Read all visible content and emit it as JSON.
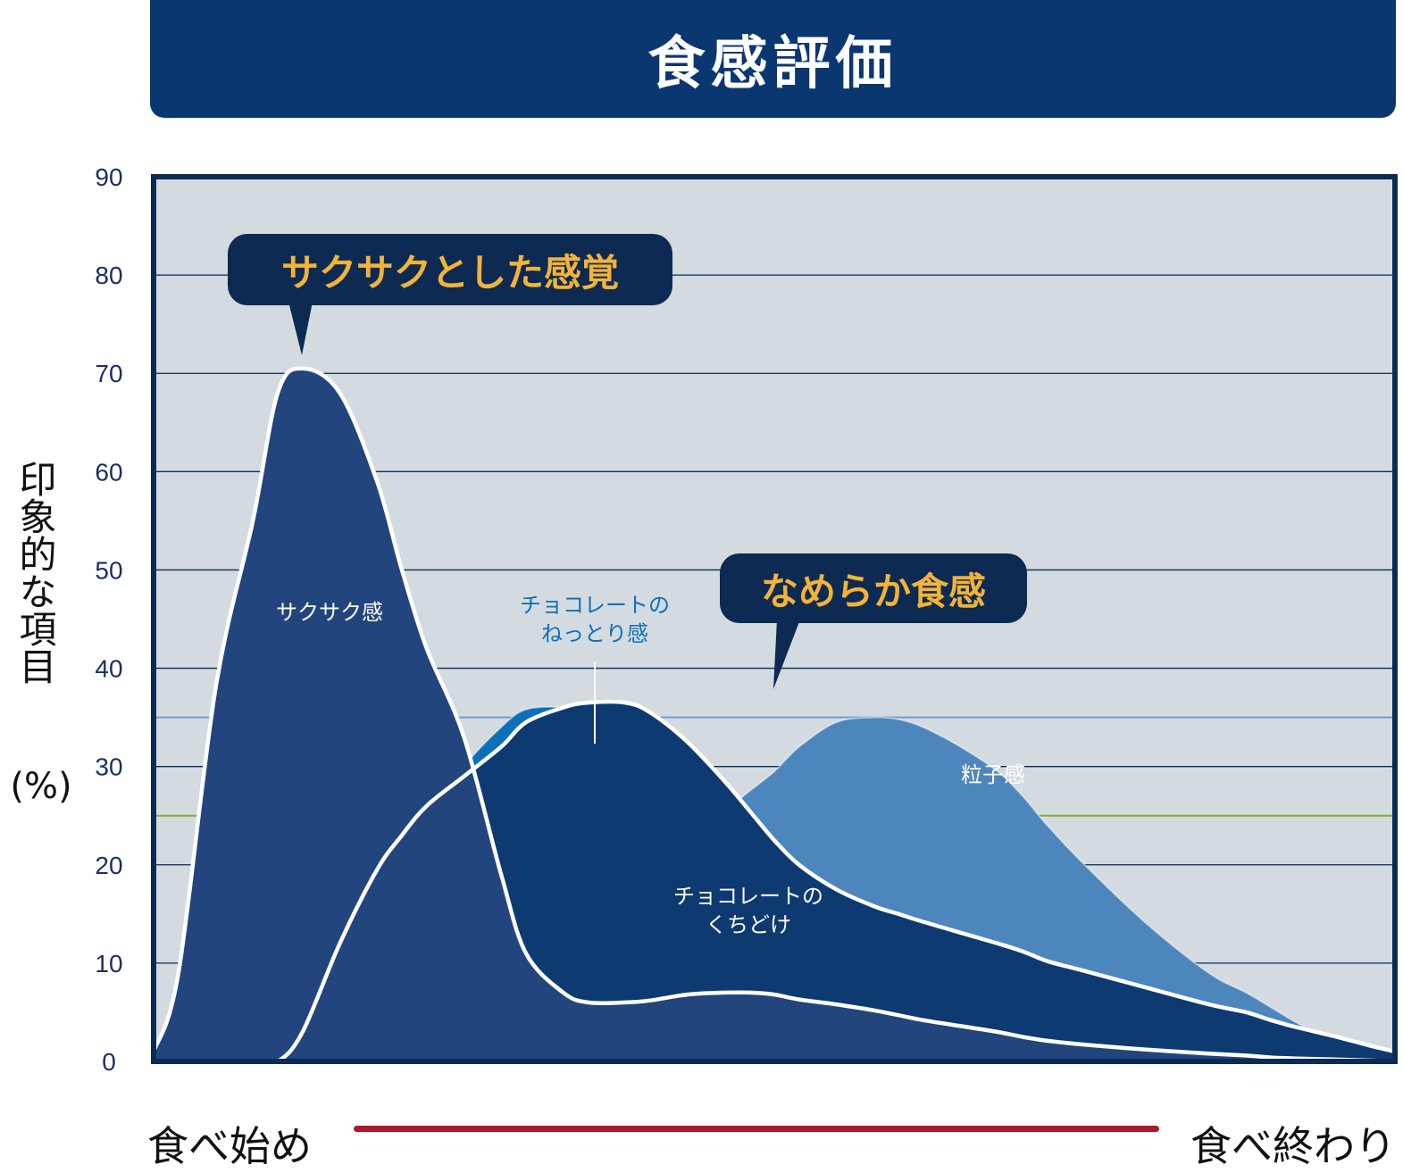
{
  "title": "食感評価",
  "y_axis_label": "印象的な項目",
  "y_axis_unit": "(%)",
  "x_axis_start": "食べ始め",
  "x_axis_end": "食べ終わり",
  "callouts": {
    "crispy": "サクサクとした感覚",
    "smooth": "なめらか食感"
  },
  "colors": {
    "title_bg": "#0b3770",
    "plot_bg": "#d3dbe1",
    "frame": "#0d2a52",
    "callout_text": "#f2b338",
    "arrow": "#b0162b",
    "ref_blue": "#6f9ccd",
    "ref_green": "#7fae3c"
  },
  "chart_data": {
    "type": "area",
    "ylim": [
      0,
      90
    ],
    "yticks": [
      "0",
      "10",
      "20",
      "30",
      "40",
      "50",
      "60",
      "70",
      "80",
      "90"
    ],
    "x": [
      0,
      0.02,
      0.05,
      0.08,
      0.1,
      0.12,
      0.15,
      0.18,
      0.2,
      0.22,
      0.25,
      0.28,
      0.3,
      0.33,
      0.35,
      0.38,
      0.4,
      0.43,
      0.46,
      0.48,
      0.5,
      0.52,
      0.55,
      0.58,
      0.6,
      0.62,
      0.65,
      0.68,
      0.7,
      0.72,
      0.75,
      0.8,
      0.85,
      0.88,
      0.9,
      0.92,
      0.95,
      0.98,
      1.0
    ],
    "reference_lines": [
      {
        "y": 35,
        "color": "#6f9ccd"
      },
      {
        "y": 25,
        "color": "#7fae3c"
      }
    ],
    "series": [
      {
        "name": "粒子感",
        "color": "#4d86bd",
        "values": [
          0,
          0,
          0,
          0.3,
          1.5,
          3,
          5.5,
          8,
          10,
          12,
          15,
          17,
          18,
          19,
          19.3,
          20,
          21,
          23,
          25.5,
          27.5,
          29.5,
          32,
          34.5,
          35,
          34.8,
          34,
          32,
          29.5,
          27,
          24,
          20,
          14,
          9,
          7,
          5.5,
          4,
          2,
          1,
          0.5
        ]
      },
      {
        "name": "チョコレートのねっとり感",
        "color": "#0b70b7",
        "values": [
          1.5,
          0.6,
          1.5,
          4.5,
          6,
          8,
          12,
          16.5,
          20,
          24.5,
          30,
          34,
          35.8,
          36,
          35.3,
          33,
          30,
          25.5,
          21.5,
          19,
          16.5,
          14.3,
          12.3,
          11.2,
          10.5,
          9.8,
          9.2,
          8.6,
          8,
          7.8,
          7.3,
          6.3,
          5.3,
          4.7,
          4,
          3.3,
          2.5,
          1.5,
          0
        ]
      },
      {
        "name": "チョコレートのくちどけ",
        "color": "#0d3a71",
        "values": [
          0,
          0,
          0,
          0,
          0,
          3,
          12,
          19.5,
          23,
          26,
          29,
          32,
          34.5,
          36,
          36.5,
          36.5,
          35.5,
          32.5,
          28.5,
          25.5,
          22.5,
          20,
          17.5,
          15.8,
          15,
          14.2,
          13.1,
          12,
          11.2,
          10.2,
          9.2,
          7.5,
          5.8,
          5,
          4.2,
          3.5,
          2.6,
          1.6,
          1
        ]
      },
      {
        "name": "サクサク感",
        "color": "#22457e",
        "values": [
          1,
          9,
          38,
          55,
          68,
          70.5,
          68,
          59,
          50,
          42,
          33,
          19,
          11,
          7,
          6,
          6,
          6.2,
          6.8,
          7,
          7,
          6.8,
          6.3,
          5.8,
          5.2,
          4.7,
          4.2,
          3.6,
          3,
          2.5,
          2.1,
          1.7,
          1.2,
          0.8,
          0.6,
          0.4,
          0.3,
          0.2,
          0.1,
          0
        ]
      }
    ],
    "highlight_lines": [
      "チョコレートのくちどけ",
      "サクサク感"
    ],
    "labels": [
      {
        "series": "サクサク感",
        "text": "サクサク感",
        "color": "#ffffff"
      },
      {
        "series": "チョコレートのねっとり感",
        "lines": [
          "チョコレートの",
          "ねっとり感"
        ],
        "color": "#0b70b7"
      },
      {
        "series": "チョコレートのくちどけ",
        "lines": [
          "チョコレートの",
          "くちどけ"
        ],
        "color": "#ffffff"
      },
      {
        "series": "粒子感",
        "text": "粒子感",
        "color": "#ffffff"
      }
    ],
    "grid": true,
    "legend": "none"
  }
}
